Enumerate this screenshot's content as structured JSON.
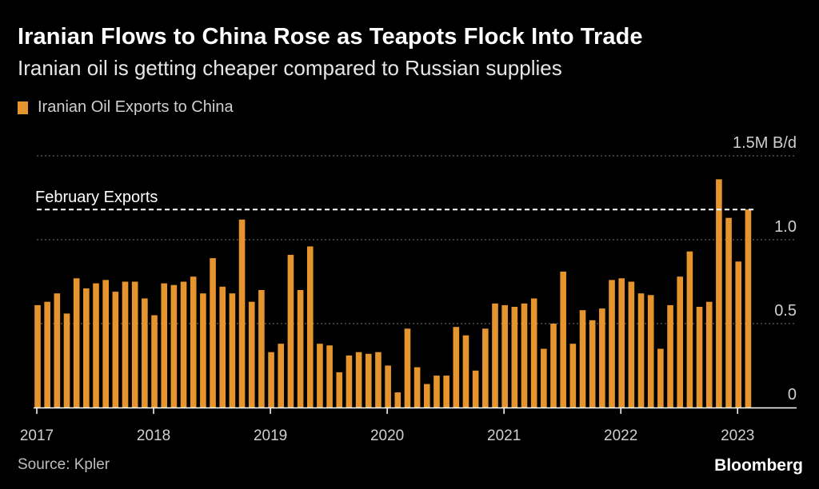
{
  "header": {
    "title": "Iranian Flows to China Rose as Teapots Flock Into Trade",
    "subtitle": "Iranian oil is getting cheaper compared to Russian supplies"
  },
  "legend": {
    "label": "Iranian Oil Exports to China",
    "color": "#e6952e"
  },
  "footer": {
    "source": "Source: Kpler",
    "brand": "Bloomberg"
  },
  "chart_data": {
    "type": "bar",
    "series_name": "Iranian Oil Exports to China",
    "unit": "M B/d",
    "ylim": [
      0,
      1.5
    ],
    "yticks": [
      {
        "value": 0,
        "label": "0"
      },
      {
        "value": 0.5,
        "label": "0.5"
      },
      {
        "value": 1.0,
        "label": "1.0"
      },
      {
        "value": 1.5,
        "label": "1.5M B/d"
      }
    ],
    "xticks": [
      "2017",
      "2018",
      "2019",
      "2020",
      "2021",
      "2022",
      "2023"
    ],
    "start": "2017-01",
    "values": [
      0.61,
      0.63,
      0.68,
      0.56,
      0.77,
      0.71,
      0.74,
      0.76,
      0.69,
      0.75,
      0.75,
      0.65,
      0.55,
      0.74,
      0.73,
      0.75,
      0.78,
      0.68,
      0.89,
      0.72,
      0.68,
      1.12,
      0.63,
      0.7,
      0.33,
      0.38,
      0.91,
      0.7,
      0.96,
      0.38,
      0.37,
      0.21,
      0.31,
      0.33,
      0.32,
      0.33,
      0.25,
      0.09,
      0.47,
      0.24,
      0.14,
      0.19,
      0.19,
      0.48,
      0.43,
      0.22,
      0.47,
      0.62,
      0.61,
      0.6,
      0.62,
      0.65,
      0.35,
      0.5,
      0.81,
      0.38,
      0.58,
      0.52,
      0.59,
      0.76,
      0.77,
      0.75,
      0.68,
      0.67,
      0.35,
      0.61,
      0.78,
      0.93,
      0.6,
      0.63,
      1.36,
      1.13,
      0.87,
      1.18
    ],
    "reference_line": {
      "label": "February Exports",
      "value": 1.18
    }
  }
}
